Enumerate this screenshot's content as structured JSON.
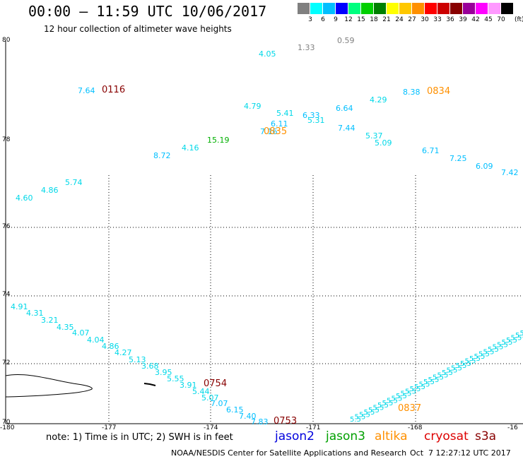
{
  "header": {
    "title": "00:00 – 11:59 UTC 10/06/2017",
    "subtitle": "12 hour collection of altimeter wave heights"
  },
  "colorbar": {
    "colors": [
      "#808080",
      "#00ffff",
      "#00bfff",
      "#0000ff",
      "#00ff7f",
      "#00d000",
      "#008000",
      "#ffff00",
      "#ffc800",
      "#ff9000",
      "#ff0000",
      "#cc0000",
      "#880000",
      "#990099",
      "#ff00ff",
      "#ff99ff",
      "#000000"
    ],
    "labels": [
      "3",
      "6",
      "9",
      "12",
      "15",
      "18",
      "21",
      "24",
      "27",
      "30",
      "33",
      "36",
      "39",
      "42",
      "45",
      "70"
    ],
    "unit": "(ft)"
  },
  "axes": {
    "lat_labels": [
      "80",
      "78",
      "76",
      "74",
      "72",
      "70"
    ],
    "lon_labels": [
      "-180",
      "-177",
      "-174",
      "-171",
      "-168",
      "-16"
    ]
  },
  "wave_labels": [
    {
      "t": "4.05",
      "c": "#00d8e8"
    },
    {
      "t": "1.33",
      "c": "#808080"
    },
    {
      "t": "0.59",
      "c": "#808080"
    },
    {
      "t": "7.64",
      "c": "#00bfff"
    },
    {
      "t": "8.38",
      "c": "#00bfff"
    },
    {
      "t": "4.79",
      "c": "#00d8e8"
    },
    {
      "t": "4.29",
      "c": "#00d8e8"
    },
    {
      "t": "5.41",
      "c": "#00d8e8"
    },
    {
      "t": "6.33",
      "c": "#00bfff"
    },
    {
      "t": "6.64",
      "c": "#00bfff"
    },
    {
      "t": "6.11",
      "c": "#00bfff"
    },
    {
      "t": "5.31",
      "c": "#00d8e8"
    },
    {
      "t": "7.16",
      "c": "#00bfff"
    },
    {
      "t": "7.44",
      "c": "#00bfff"
    },
    {
      "t": "5.37",
      "c": "#00d8e8"
    },
    {
      "t": "15.19",
      "c": "#00b000"
    },
    {
      "t": "4.16",
      "c": "#00d8e8"
    },
    {
      "t": "5.09",
      "c": "#00d8e8"
    },
    {
      "t": "8.72",
      "c": "#00bfff"
    },
    {
      "t": "6.71",
      "c": "#00bfff"
    },
    {
      "t": "7.25",
      "c": "#00bfff"
    },
    {
      "t": "6.09",
      "c": "#00bfff"
    },
    {
      "t": "7.42",
      "c": "#00bfff"
    },
    {
      "t": "5.74",
      "c": "#00d8e8"
    },
    {
      "t": "4.86",
      "c": "#00d8e8"
    },
    {
      "t": "4.60",
      "c": "#00d8e8"
    },
    {
      "t": "4.91",
      "c": "#00d8e8"
    },
    {
      "t": "4.31",
      "c": "#00d8e8"
    },
    {
      "t": "3.21",
      "c": "#00d8e8"
    },
    {
      "t": "4.35",
      "c": "#00d8e8"
    },
    {
      "t": "4.07",
      "c": "#00d8e8"
    },
    {
      "t": "4.04",
      "c": "#00d8e8"
    },
    {
      "t": "4.86",
      "c": "#00d8e8"
    },
    {
      "t": "4.27",
      "c": "#00d8e8"
    },
    {
      "t": "5.13",
      "c": "#00d8e8"
    },
    {
      "t": "3.68",
      "c": "#00d8e8"
    },
    {
      "t": "3.95",
      "c": "#00d8e8"
    },
    {
      "t": "5.55",
      "c": "#00d8e8"
    },
    {
      "t": "3.91",
      "c": "#00d8e8"
    },
    {
      "t": "5.44",
      "c": "#00d8e8"
    },
    {
      "t": "5.07",
      "c": "#00d8e8"
    },
    {
      "t": "7.07",
      "c": "#00bfff"
    },
    {
      "t": "6.15",
      "c": "#00bfff"
    },
    {
      "t": "7.40",
      "c": "#00bfff"
    },
    {
      "t": "7.83",
      "c": "#00bfff"
    }
  ],
  "time_labels": [
    {
      "t": "0116",
      "c": "#880000"
    },
    {
      "t": "0834",
      "c": "#ff9000"
    },
    {
      "t": "0835",
      "c": "#ff9000"
    },
    {
      "t": "0754",
      "c": "#880000"
    },
    {
      "t": "0753",
      "c": "#880000"
    },
    {
      "t": "0837",
      "c": "#ff9000"
    }
  ],
  "footer": {
    "note": "note: 1) Time is in UTC; 2) SWH is in feet",
    "satellites": [
      {
        "name": "jason2",
        "color": "#0000dd"
      },
      {
        "name": "jason3",
        "color": "#00a000"
      },
      {
        "name": "altika",
        "color": "#ff9000"
      },
      {
        "name": "cryosat",
        "color": "#dd0000"
      },
      {
        "name": "s3a",
        "color": "#880000"
      }
    ],
    "credit": "NOAA/NESDIS Center for Satellite Applications and Research",
    "timestamp": "Oct  7 12:27:12 UTC 2017"
  }
}
